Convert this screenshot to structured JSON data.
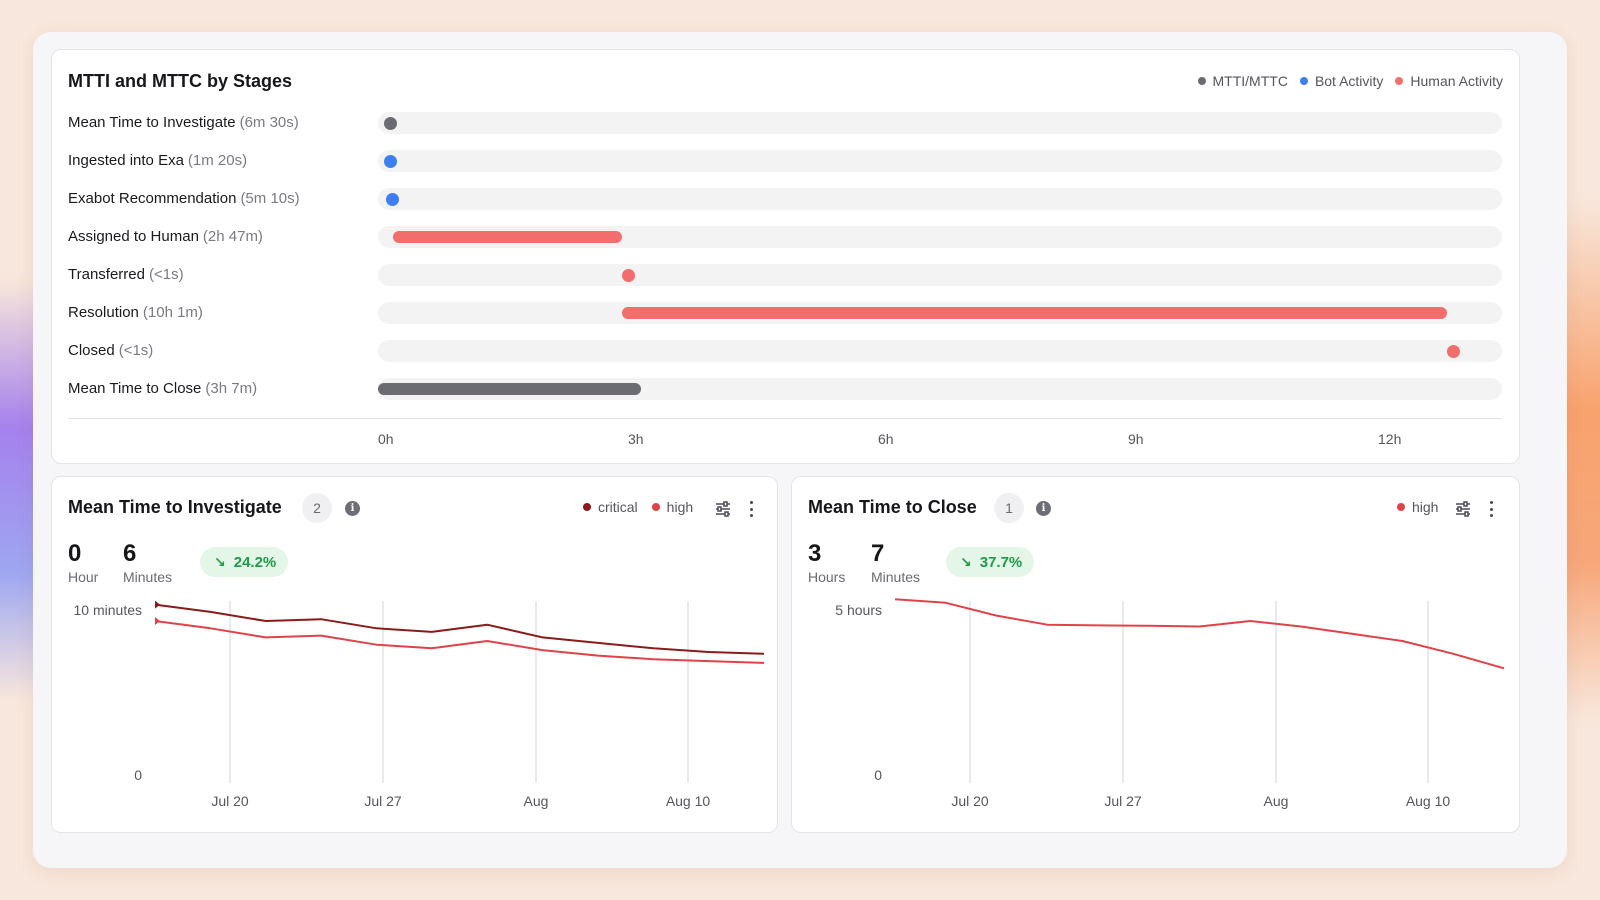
{
  "colors": {
    "mtti_mttc": "#6b6b72",
    "bot": "#3b7ff0",
    "human": "#f46d6d",
    "critical": "#8b1a1a",
    "high": "#e0424a",
    "positive": "#1f9a47"
  },
  "stages": {
    "title": "MTTI and MTTC by Stages",
    "legend": [
      {
        "label": "MTTI/MTTC",
        "color": "#6b6b72"
      },
      {
        "label": "Bot Activity",
        "color": "#3b7ff0"
      },
      {
        "label": "Human Activity",
        "color": "#f46d6d"
      }
    ],
    "axis_ticks": [
      "0h",
      "3h",
      "6h",
      "9h",
      "12h"
    ],
    "rows": [
      {
        "label": "Mean Time to Investigate",
        "duration": "(6m 30s)",
        "kind": "mtti_mttc",
        "start_h": 0,
        "end_h": 0.11
      },
      {
        "label": "Ingested into Exa",
        "duration": "(1m 20s)",
        "kind": "bot",
        "start_h": 0,
        "end_h": 0.02
      },
      {
        "label": "Exabot Recommendation",
        "duration": "(5m 10s)",
        "kind": "bot",
        "start_h": 0.02,
        "end_h": 0.11
      },
      {
        "label": "Assigned to Human",
        "duration": "(2h 47m)",
        "kind": "human",
        "start_h": 0.11,
        "end_h": 2.89
      },
      {
        "label": "Transferred",
        "duration": "(<1s)",
        "kind": "human",
        "start_h": 2.89,
        "end_h": 2.89
      },
      {
        "label": "Resolution",
        "duration": "(10h 1m)",
        "kind": "human",
        "start_h": 2.89,
        "end_h": 12.9
      },
      {
        "label": "Closed",
        "duration": "(<1s)",
        "kind": "human",
        "start_h": 12.9,
        "end_h": 12.9
      },
      {
        "label": "Mean Time to Close",
        "duration": "(3h 7m)",
        "kind": "mtti_mttc",
        "start_h": 0,
        "end_h": 3.12
      }
    ]
  },
  "mtti": {
    "title": "Mean Time to Investigate",
    "count": "2",
    "legend": [
      {
        "label": "critical",
        "color": "#8b1a1a"
      },
      {
        "label": "high",
        "color": "#e0424a"
      }
    ],
    "value_1": "0",
    "unit_1": "Hour",
    "value_2": "6",
    "unit_2": "Minutes",
    "delta": "24.2%"
  },
  "mttc": {
    "title": "Mean Time to Close",
    "count": "1",
    "legend": [
      {
        "label": "high",
        "color": "#e0424a"
      }
    ],
    "value_1": "3",
    "unit_1": "Hours",
    "value_2": "7",
    "unit_2": "Minutes",
    "delta": "37.7%"
  },
  "chart_data": [
    {
      "type": "bar",
      "title": "MTTI and MTTC by Stages",
      "categories": [
        "Mean Time to Investigate",
        "Ingested into Exa",
        "Exabot Recommendation",
        "Assigned to Human",
        "Transferred",
        "Resolution",
        "Closed",
        "Mean Time to Close"
      ],
      "xlabel": "",
      "ylabel": "",
      "x_ticks": [
        "0h",
        "3h",
        "6h",
        "9h",
        "12h"
      ],
      "xlim": [
        0,
        13.5
      ]
    },
    {
      "type": "line",
      "title": "Mean Time to Investigate",
      "x_ticks": [
        "Jul 20",
        "Jul 27",
        "Aug",
        "Aug 10"
      ],
      "y_ticks": [
        "0",
        "10 minutes"
      ],
      "ylim": [
        0,
        10
      ],
      "x": [
        0,
        1,
        2,
        3,
        4,
        5,
        6,
        7,
        8,
        9,
        10,
        11
      ],
      "series": [
        {
          "name": "critical",
          "color": "#8b1a1a",
          "values": [
            9.8,
            9.4,
            8.9,
            9.0,
            8.5,
            8.3,
            8.7,
            8.0,
            7.7,
            7.4,
            7.2,
            7.1
          ]
        },
        {
          "name": "high",
          "color": "#e0424a",
          "values": [
            8.9,
            8.5,
            8.0,
            8.1,
            7.6,
            7.4,
            7.8,
            7.3,
            7.0,
            6.8,
            6.7,
            6.6
          ]
        }
      ]
    },
    {
      "type": "line",
      "title": "Mean Time to Close",
      "x_ticks": [
        "Jul 20",
        "Jul 27",
        "Aug",
        "Aug 10"
      ],
      "y_ticks": [
        "0",
        "5 hours"
      ],
      "ylim": [
        0,
        5
      ],
      "x": [
        0,
        1,
        2,
        3,
        4,
        5,
        6,
        7,
        8,
        9,
        10,
        11,
        12
      ],
      "series": [
        {
          "name": "high",
          "color": "#e0424a",
          "values": [
            5.05,
            4.95,
            4.6,
            4.35,
            4.33,
            4.32,
            4.3,
            4.45,
            4.3,
            4.1,
            3.9,
            3.55,
            3.15
          ]
        }
      ]
    }
  ]
}
